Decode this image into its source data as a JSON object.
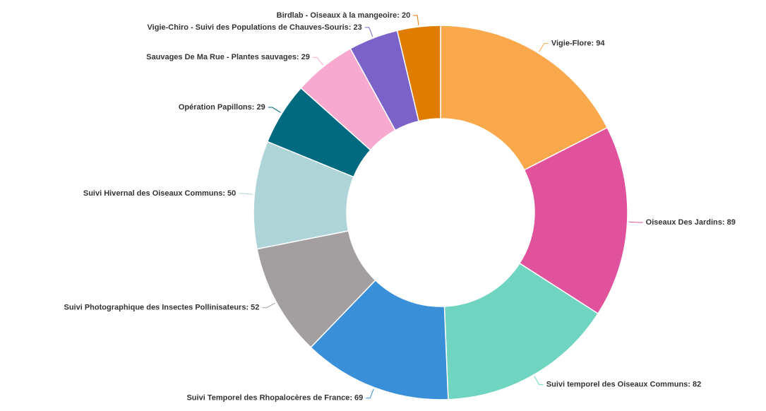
{
  "chart_data": {
    "type": "donut",
    "values": [
      94,
      89,
      82,
      69,
      52,
      50,
      29,
      29,
      23,
      20
    ],
    "value_labels": [
      "Vigie-Flore: 94",
      "Oiseaux Des Jardins: 89",
      "Suivi temporel des Oiseaux Communs: 82",
      "Suivi Temporel des Rhopalocères de France: 69",
      "Suivi Photographique des Insectes Pollinisateurs: 52",
      "Suivi Hivernal des Oiseaux Communs: 50",
      "Opération Papillons: 29",
      "Sauvages De Ma Rue - Plantes sauvages: 29",
      "Vigie-Chiro - Suivi des Populations de Chauves-Souris: 23",
      "Birdlab - Oiseaux à la mangeoire: 20"
    ],
    "colors": [
      "#f9a94b",
      "#e0529c",
      "#6fd4c0",
      "#3a8fd9",
      "#a39e9f",
      "#aed4d8",
      "#006a80",
      "#f7a9cf",
      "#7b62c9",
      "#e07c00"
    ]
  }
}
